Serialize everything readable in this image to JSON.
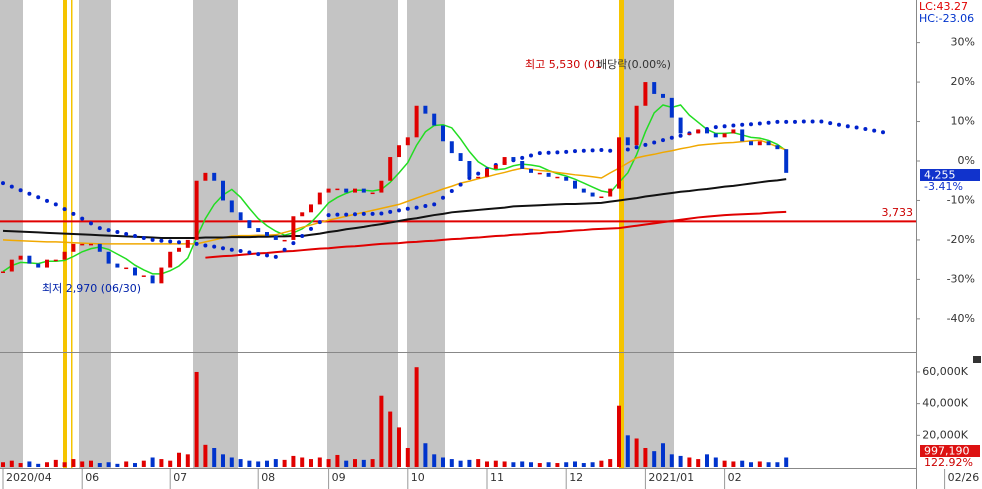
{
  "chart_data": [
    {
      "type": "candle",
      "categories": [
        "2020/04",
        null,
        null,
        null,
        null,
        null,
        null,
        null,
        null,
        "06",
        null,
        null,
        null,
        null,
        null,
        null,
        null,
        null,
        null,
        "07",
        null,
        null,
        null,
        null,
        null,
        null,
        null,
        null,
        null,
        "08",
        null,
        null,
        null,
        null,
        null,
        null,
        null,
        "09",
        null,
        null,
        null,
        null,
        null,
        null,
        null,
        null,
        "10",
        null,
        null,
        null,
        null,
        null,
        null,
        null,
        null,
        "11",
        null,
        null,
        null,
        null,
        null,
        null,
        null,
        null,
        "12",
        null,
        null,
        null,
        null,
        null,
        null,
        null,
        null,
        "2021/01",
        null,
        null,
        null,
        null,
        null,
        null,
        null,
        null,
        "02",
        null,
        null,
        null,
        null,
        null,
        null,
        null,
        null,
        null,
        null,
        null,
        null,
        null,
        null,
        null,
        null,
        null,
        null,
        null,
        null,
        null,
        null,
        null,
        null,
        "02/26"
      ],
      "values": [
        -28,
        -25,
        -24,
        -26,
        -27,
        -25,
        -25,
        -23,
        -21,
        -21,
        -21,
        -23,
        -26,
        -27,
        -27,
        -29,
        -29,
        -31,
        -27,
        -23,
        -22,
        -20,
        -5,
        -3,
        -5,
        -10,
        -13,
        -15,
        -17,
        -18,
        -19,
        -20,
        -20,
        -14,
        -13,
        -11,
        -8,
        -7,
        -7,
        -8,
        -7,
        -8,
        -8,
        -5,
        1,
        4,
        6,
        14,
        12,
        9,
        5,
        2,
        0,
        -4,
        -4,
        -2,
        -1,
        1,
        0,
        -2,
        -3,
        -3,
        -4,
        -4,
        -5,
        -7,
        -8,
        -9,
        -9,
        -7,
        6,
        4,
        14,
        20,
        17,
        16,
        11,
        7,
        7,
        8,
        7,
        6,
        7,
        8,
        5,
        4,
        5,
        4,
        3,
        -3,
        null,
        null,
        null,
        null,
        null,
        null,
        null,
        null,
        null,
        null,
        null,
        null,
        null,
        null,
        null,
        null,
        null,
        null
      ],
      "up_color": "#e00000",
      "down_color": "#0033cc",
      "lines": [
        {
          "color": "#22dd22",
          "values": [
            -28,
            -26.5,
            -25.7,
            -25.8,
            -26,
            -25.4,
            -25.4,
            -25.2,
            -24.2,
            -23,
            -22.2,
            -21.8,
            -22.4,
            -23.6,
            -24.8,
            -26.4,
            -27.6,
            -28.6,
            -28.6,
            -27.8,
            -26.6,
            -24.6,
            -19.4,
            -14.6,
            -11,
            -8.6,
            -7.2,
            -9.2,
            -12,
            -14.6,
            -16.4,
            -17.8,
            -18.8,
            -18.2,
            -17.2,
            -15.6,
            -13.2,
            -10.6,
            -9.2,
            -8.2,
            -7.4,
            -7.4,
            -7.6,
            -7.2,
            -5.4,
            -3,
            -0.4,
            4,
            7.4,
            9,
            9.2,
            8.4,
            5.6,
            2.4,
            -0.2,
            -1.6,
            -2.2,
            -2,
            -1.2,
            -0.8,
            -1,
            -1.4,
            -2.4,
            -3.2,
            -3.8,
            -4.6,
            -5.6,
            -6.6,
            -7.6,
            -8,
            -5.4,
            -3,
            1.6,
            7.4,
            12.2,
            14.2,
            13.6,
            14.2,
            11.6,
            9.8,
            8,
            7,
            7,
            7.2,
            6.6,
            6,
            5.8,
            5.2,
            4.2,
            2.6,
            null,
            null,
            null,
            null,
            null,
            null,
            null,
            null,
            null,
            null,
            null,
            null,
            null,
            null,
            null,
            null,
            null,
            null
          ]
        },
        {
          "color": "#f0a800",
          "values": [
            -20,
            -20.1,
            -20.2,
            -20.3,
            -20.4,
            -20.5,
            -20.5,
            -20.6,
            -20.7,
            -20.8,
            -20.9,
            -21,
            -21,
            -21,
            -21,
            -21,
            -21,
            -21,
            -21,
            -21,
            -21,
            -21,
            -21,
            -20.5,
            -20,
            -19.5,
            -19,
            -18.9,
            -18.9,
            -18.8,
            -18.8,
            -18.7,
            -18.1,
            -17.5,
            -16.8,
            -16.2,
            -15.6,
            -15,
            -14.5,
            -14,
            -13.5,
            -13,
            -12.5,
            -12,
            -11.5,
            -11,
            -10.2,
            -9.4,
            -8.6,
            -7.9,
            -7.1,
            -6.4,
            -5.6,
            -5.1,
            -4.5,
            -4,
            -3.4,
            -2.9,
            -2.3,
            -1.8,
            -2.1,
            -2.4,
            -2.6,
            -2.9,
            -3.2,
            -3.5,
            -3.7,
            -4,
            -4.3,
            -3,
            -1.8,
            -0.5,
            0.8,
            1.3,
            1.7,
            2.2,
            2.6,
            3.1,
            3.5,
            4,
            4.2,
            4.4,
            4.6,
            4.7,
            4.9,
            5.1,
            5.3,
            4.5,
            3.6,
            2.8,
            null,
            null,
            null,
            null,
            null,
            null,
            null,
            null,
            null,
            null,
            null,
            null,
            null,
            null,
            null,
            null,
            null,
            null
          ]
        },
        {
          "color": "#111111",
          "values": [
            -17.7,
            -17.8,
            -17.9,
            -18,
            -18.1,
            -18.2,
            -18.3,
            -18.4,
            -18.5,
            -18.6,
            -18.7,
            -18.8,
            -18.9,
            -19,
            -19.1,
            -19.2,
            -19.3,
            -19.4,
            -19.5,
            -19.5,
            -19.5,
            -19.5,
            -19.5,
            -19.4,
            -19.4,
            -19.4,
            -19.3,
            -19.3,
            -19.3,
            -19.2,
            -19.2,
            -19.1,
            -19.1,
            -19,
            -19,
            -18.7,
            -18.4,
            -18,
            -17.7,
            -17.3,
            -17,
            -16.7,
            -16.3,
            -16,
            -15.6,
            -15.2,
            -14.8,
            -14.5,
            -14.1,
            -13.7,
            -13.4,
            -13,
            -12.8,
            -12.6,
            -12.4,
            -12.2,
            -12,
            -11.8,
            -11.5,
            -11.4,
            -11.3,
            -11.2,
            -11.1,
            -11,
            -10.9,
            -10.9,
            -10.8,
            -10.7,
            -10.6,
            -10.3,
            -10,
            -9.7,
            -9.4,
            -9,
            -8.7,
            -8.4,
            -8.1,
            -7.8,
            -7.6,
            -7.3,
            -7.1,
            -6.8,
            -6.5,
            -6.3,
            -6,
            -5.7,
            -5.4,
            -5.1,
            -4.9,
            -4.6,
            null,
            null,
            null,
            null,
            null,
            null,
            null,
            null,
            null,
            null,
            null,
            null,
            null,
            null,
            null,
            null,
            null,
            null
          ]
        },
        {
          "color": "#e00000",
          "values": [
            null,
            null,
            null,
            null,
            null,
            null,
            null,
            null,
            null,
            null,
            null,
            null,
            null,
            null,
            null,
            null,
            null,
            null,
            null,
            null,
            null,
            null,
            null,
            -24.5,
            -24.3,
            -24.1,
            -24,
            -23.8,
            -23.6,
            -23.4,
            -23.3,
            -23.1,
            -22.9,
            -22.8,
            -22.6,
            -22.4,
            -22.2,
            -22.1,
            -21.9,
            -21.7,
            -21.6,
            -21.4,
            -21.2,
            -21,
            -20.9,
            -20.8,
            -20.6,
            -20.5,
            -20.3,
            -20.2,
            -20,
            -19.8,
            -19.7,
            -19.5,
            -19.4,
            -19.2,
            -19,
            -18.9,
            -18.7,
            -18.6,
            -18.4,
            -18.3,
            -18.1,
            -18,
            -17.8,
            -17.6,
            -17.5,
            -17.3,
            -17.2,
            -17.1,
            -17,
            -16.7,
            -16.4,
            -16.1,
            -15.8,
            -15.5,
            -15.2,
            -14.9,
            -14.6,
            -14.3,
            -14.1,
            -13.9,
            -13.7,
            -13.6,
            -13.5,
            -13.4,
            -13.3,
            -13.1,
            -13,
            -12.9,
            null,
            null,
            null,
            null,
            null,
            null,
            null,
            null,
            null,
            null,
            null,
            null,
            null,
            null,
            null,
            null,
            null,
            null
          ]
        }
      ],
      "dots": {
        "color": "#0022cc",
        "values": [
          -5.6,
          -6.5,
          -7.4,
          -8.3,
          -9.2,
          -10.1,
          -11,
          -12.2,
          -13.4,
          -14.6,
          -15.8,
          -17,
          -17.5,
          -18,
          -18.5,
          -19,
          -19.5,
          -20,
          -20.2,
          -20.4,
          -20.6,
          -20.8,
          -21,
          -21.4,
          -21.7,
          -22.1,
          -22.5,
          -22.8,
          -23.2,
          -23.6,
          -23.9,
          -24.3,
          -22.5,
          -20.8,
          -19,
          -17.2,
          -15.5,
          -13.7,
          -13.6,
          -13.6,
          -13.5,
          -13.4,
          -13.4,
          -13.3,
          -12.9,
          -12.5,
          -12.1,
          -11.8,
          -11.4,
          -11,
          -9.3,
          -7.6,
          -6,
          -4.3,
          -3.2,
          -2.1,
          -1,
          -0.4,
          0.2,
          0.8,
          1.4,
          2,
          2.1,
          2.2,
          2.3,
          2.5,
          2.6,
          2.7,
          2.8,
          2.6,
          2.3,
          2.9,
          3.5,
          4.1,
          4.7,
          5.3,
          5.9,
          6.4,
          7,
          7.5,
          8.1,
          8.6,
          8.8,
          9,
          9.2,
          9.3,
          9.5,
          9.7,
          9.9,
          9.9,
          9.9,
          10,
          10,
          10,
          9.6,
          9.2,
          8.8,
          8.5,
          8.1,
          7.7,
          7.3,
          null,
          null,
          null,
          null,
          null,
          null,
          null
        ]
      },
      "reference_line": {
        "value": -15.3,
        "color": "#e00000"
      },
      "ylim": [
        -48.4,
        40.8
      ],
      "yticks": [
        {
          "value": 30,
          "label": "30%"
        },
        {
          "value": 20,
          "label": "20%"
        },
        {
          "value": 10,
          "label": "10%"
        },
        {
          "value": 0,
          "label": "0%"
        },
        {
          "value": -10,
          "label": "-10%"
        },
        {
          "value": -20,
          "label": "-20%"
        },
        {
          "value": -30,
          "label": "-30%"
        },
        {
          "value": -40,
          "label": "-40%"
        }
      ]
    },
    {
      "type": "volume",
      "values": [
        3000,
        4000,
        2500,
        3500,
        2000,
        3000,
        4500,
        3000,
        5000,
        3500,
        4000,
        2500,
        3000,
        2000,
        3500,
        2500,
        4000,
        6000,
        5000,
        4000,
        9000,
        8000,
        60000,
        14000,
        12000,
        8000,
        6000,
        5000,
        4000,
        3500,
        4000,
        5000,
        4500,
        7000,
        6000,
        5000,
        6000,
        5000,
        7600,
        4000,
        5000,
        4500,
        5000,
        45000,
        35000,
        25000,
        12000,
        63000,
        15000,
        8000,
        6000,
        5000,
        4000,
        4500,
        5000,
        3500,
        4000,
        3500,
        3000,
        3500,
        3000,
        2500,
        3000,
        2500,
        3000,
        3500,
        2500,
        3000,
        4000,
        5000,
        38700,
        20000,
        18000,
        12000,
        10000,
        15000,
        8000,
        7000,
        6000,
        5000,
        8000,
        6000,
        4000,
        3500,
        4000,
        3000,
        3500,
        3000,
        3000,
        6000,
        null,
        null,
        null,
        null,
        null,
        null,
        null,
        null,
        null,
        null,
        null,
        null,
        null,
        null,
        null,
        null,
        null,
        null
      ],
      "ylim": [
        0,
        72600
      ],
      "yticks": [
        {
          "value": 60000,
          "label": "60,000K"
        },
        {
          "value": 40000,
          "label": "40,000K"
        },
        {
          "value": 20000,
          "label": "20,000K"
        }
      ]
    }
  ],
  "labels": {
    "lc": "LC:43.27",
    "hc": "HC:-23.06",
    "high": "최고 5,530 (01",
    "ex_dividend": "배당락(0.00%)",
    "low": "최저 2,970 (06/30)",
    "reference": "3,733",
    "last_price": "4,255",
    "last_change": "-3.41%",
    "last_volume": "997,190",
    "volume_ratio": "122.92%"
  }
}
